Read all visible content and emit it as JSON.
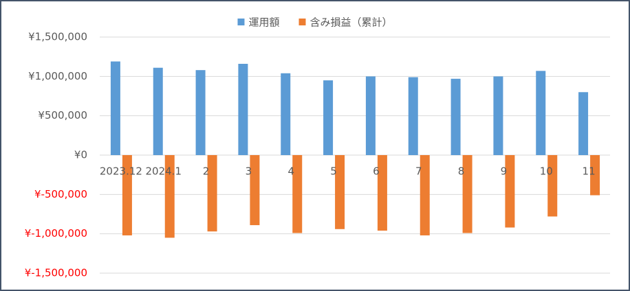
{
  "chart_data": {
    "type": "bar",
    "categories": [
      "2023.12",
      "2024.1",
      "2",
      "3",
      "4",
      "5",
      "6",
      "7",
      "8",
      "9",
      "10",
      "11"
    ],
    "series": [
      {
        "name": "運用額",
        "color": "#5b9bd5",
        "values": [
          1190000,
          1110000,
          1080000,
          1160000,
          1040000,
          950000,
          1000000,
          990000,
          970000,
          1000000,
          1070000,
          800000
        ]
      },
      {
        "name": "含み損益（累計）",
        "color": "#ed7d31",
        "values": [
          -1020000,
          -1050000,
          -970000,
          -890000,
          -990000,
          -940000,
          -960000,
          -1020000,
          -990000,
          -920000,
          -780000,
          -510000
        ]
      }
    ],
    "ylim": [
      -1500000,
      1500000
    ],
    "yticks": [
      {
        "value": -1500000,
        "label": "¥-1,500,000"
      },
      {
        "value": -1000000,
        "label": "¥-1,000,000"
      },
      {
        "value": -500000,
        "label": "¥-500,000"
      },
      {
        "value": 0,
        "label": "¥0"
      },
      {
        "value": 500000,
        "label": "¥500,000"
      },
      {
        "value": 1000000,
        "label": "¥1,000,000"
      },
      {
        "value": 1500000,
        "label": "¥1,500,000"
      }
    ],
    "grid": true,
    "legend": "top",
    "negative_tick_color": "#ff0000"
  }
}
